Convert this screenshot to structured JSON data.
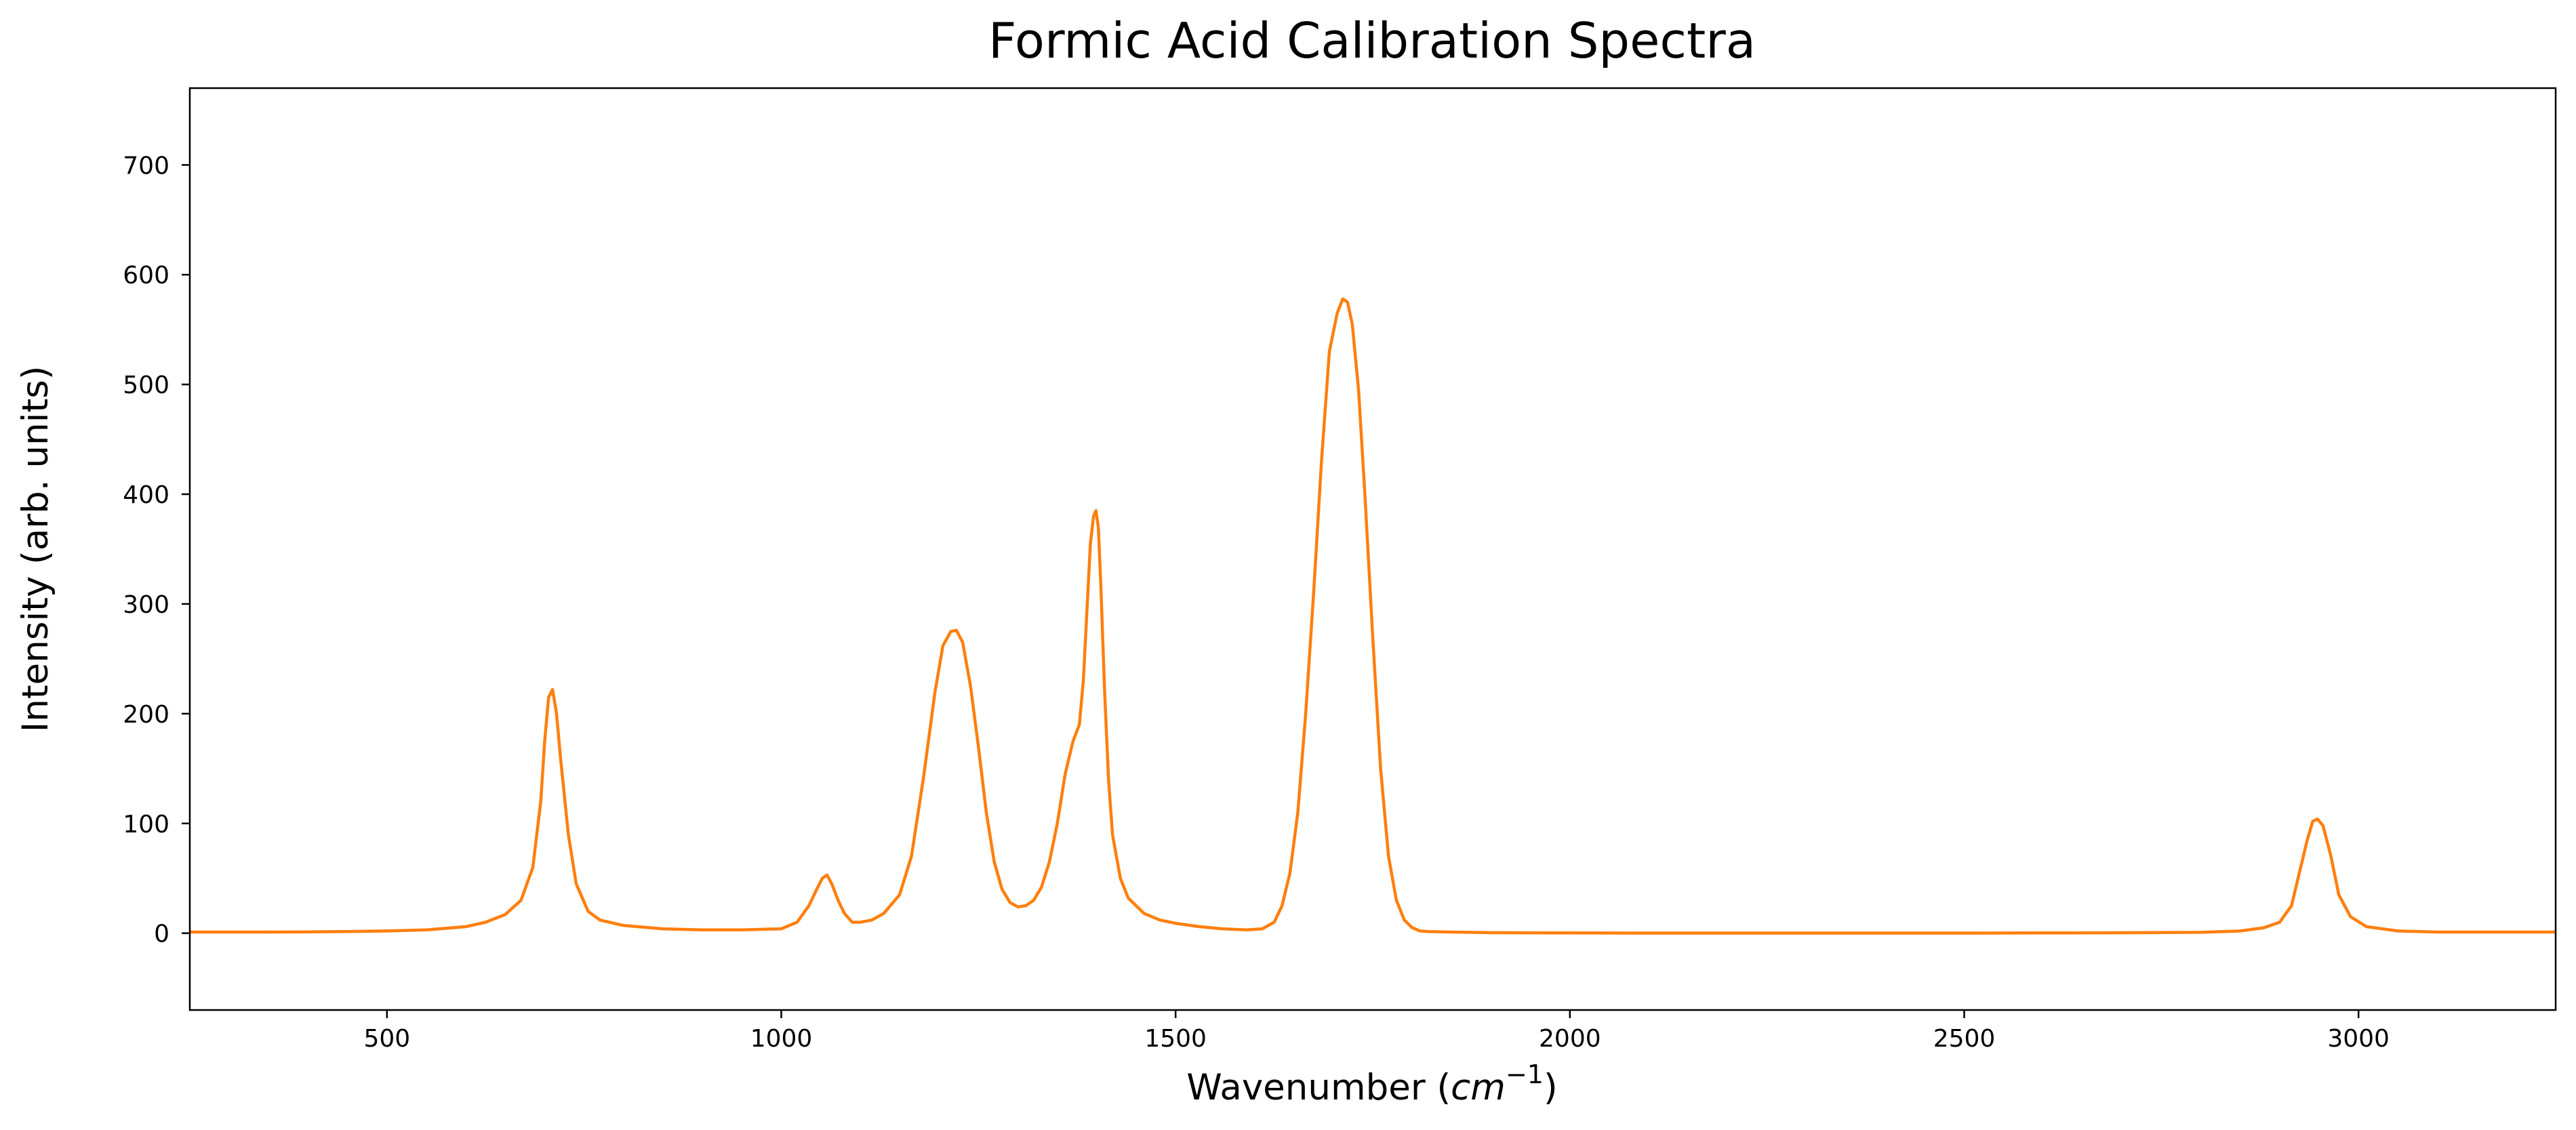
{
  "chart_data": {
    "type": "line",
    "title": "Formic Acid Calibration Spectra",
    "xlabel_text": "Wavenumber (",
    "xlabel_math": "cm",
    "xlabel_exp": "−1",
    "xlabel_close": ")",
    "ylabel": "Intensity (arb. units)",
    "xlim": [
      250,
      3250
    ],
    "ylim": [
      -70,
      770
    ],
    "xticks": [
      500,
      1000,
      1500,
      2000,
      2500,
      3000
    ],
    "yticks": [
      0,
      100,
      200,
      300,
      400,
      500,
      600,
      700
    ],
    "grid": false,
    "series": [
      {
        "color": "#ff7f0e",
        "x": [
          250,
          300,
          350,
          400,
          450,
          500,
          550,
          600,
          625,
          650,
          670,
          685,
          695,
          700,
          705,
          710,
          715,
          720,
          730,
          740,
          755,
          770,
          800,
          850,
          900,
          950,
          1000,
          1020,
          1035,
          1045,
          1052,
          1058,
          1064,
          1072,
          1080,
          1090,
          1100,
          1115,
          1130,
          1150,
          1165,
          1180,
          1195,
          1205,
          1215,
          1222,
          1230,
          1240,
          1250,
          1260,
          1270,
          1280,
          1290,
          1300,
          1310,
          1320,
          1330,
          1340,
          1350,
          1360,
          1370,
          1378,
          1383,
          1388,
          1392,
          1396,
          1399,
          1402,
          1405,
          1410,
          1415,
          1420,
          1430,
          1440,
          1460,
          1480,
          1500,
          1530,
          1560,
          1590,
          1610,
          1625,
          1635,
          1645,
          1655,
          1665,
          1675,
          1685,
          1695,
          1705,
          1712,
          1718,
          1724,
          1732,
          1740,
          1750,
          1760,
          1770,
          1780,
          1790,
          1800,
          1810,
          1820,
          1850,
          1900,
          2000,
          2100,
          2200,
          2300,
          2400,
          2500,
          2600,
          2700,
          2800,
          2850,
          2880,
          2900,
          2915,
          2925,
          2935,
          2942,
          2948,
          2955,
          2965,
          2975,
          2990,
          3010,
          3050,
          3100,
          3150,
          3200,
          3250
        ],
        "y": [
          1,
          1,
          1,
          1.2,
          1.5,
          2,
          3,
          6,
          10,
          17,
          30,
          60,
          120,
          175,
          215,
          222,
          200,
          160,
          90,
          45,
          20,
          12,
          7,
          4,
          3,
          3,
          4,
          10,
          25,
          40,
          50,
          53,
          45,
          30,
          18,
          10,
          10,
          12,
          18,
          35,
          70,
          140,
          220,
          262,
          275,
          276,
          265,
          225,
          170,
          110,
          65,
          40,
          28,
          24,
          25,
          30,
          42,
          65,
          100,
          145,
          175,
          190,
          230,
          300,
          355,
          380,
          385,
          370,
          320,
          220,
          140,
          90,
          50,
          32,
          18,
          12,
          9,
          6,
          4,
          3,
          4,
          10,
          25,
          55,
          110,
          200,
          310,
          430,
          530,
          565,
          578,
          575,
          555,
          495,
          400,
          270,
          150,
          70,
          30,
          12,
          5,
          2,
          1.5,
          1,
          0.5,
          0.2,
          0.1,
          0.1,
          0.1,
          0.1,
          0.1,
          0.2,
          0.4,
          0.8,
          2,
          5,
          10,
          25,
          55,
          85,
          102,
          104,
          98,
          70,
          35,
          15,
          6,
          2,
          1,
          1,
          1,
          1
        ]
      }
    ]
  }
}
